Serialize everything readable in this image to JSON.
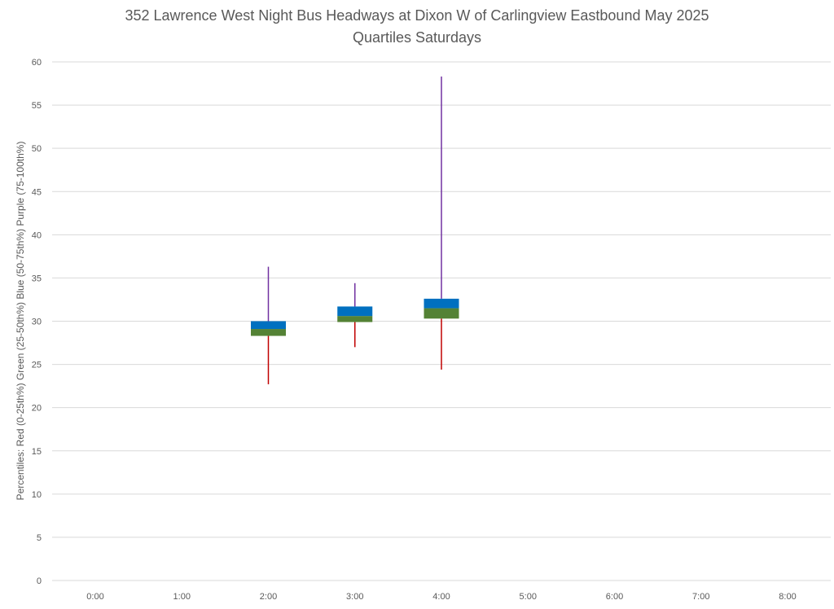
{
  "chart_data": {
    "type": "box",
    "title": "352 Lawrence West Night Bus Headways at Dixon W of Carlingview Eastbound May 2025",
    "subtitle": "Quartiles Saturdays",
    "xlabel": "",
    "ylabel": "Percentiles:  Red (0-25th%)  Green (25-50th%)  Blue (50-75th%)  Purple (75-100th%)",
    "ylim": [
      0,
      60
    ],
    "y_ticks": [
      0,
      5,
      10,
      15,
      20,
      25,
      30,
      35,
      40,
      45,
      50,
      55,
      60
    ],
    "categories": [
      "0:00",
      "1:00",
      "2:00",
      "3:00",
      "4:00",
      "5:00",
      "6:00",
      "7:00",
      "8:00"
    ],
    "grid": true,
    "colors": {
      "red": "#c00000",
      "green": "#548235",
      "blue": "#0070c0",
      "purple": "#7030a0",
      "grid": "#d9d9d9",
      "text": "#595959"
    },
    "boxes": [
      {
        "category": "2:00",
        "min": 22.7,
        "q1": 28.3,
        "median": 29.1,
        "q3": 30.0,
        "max": 36.3
      },
      {
        "category": "3:00",
        "min": 27.0,
        "q1": 29.9,
        "median": 30.6,
        "q3": 31.7,
        "max": 34.4
      },
      {
        "category": "4:00",
        "min": 24.4,
        "q1": 30.3,
        "median": 31.5,
        "q3": 32.6,
        "max": 58.3
      }
    ]
  }
}
